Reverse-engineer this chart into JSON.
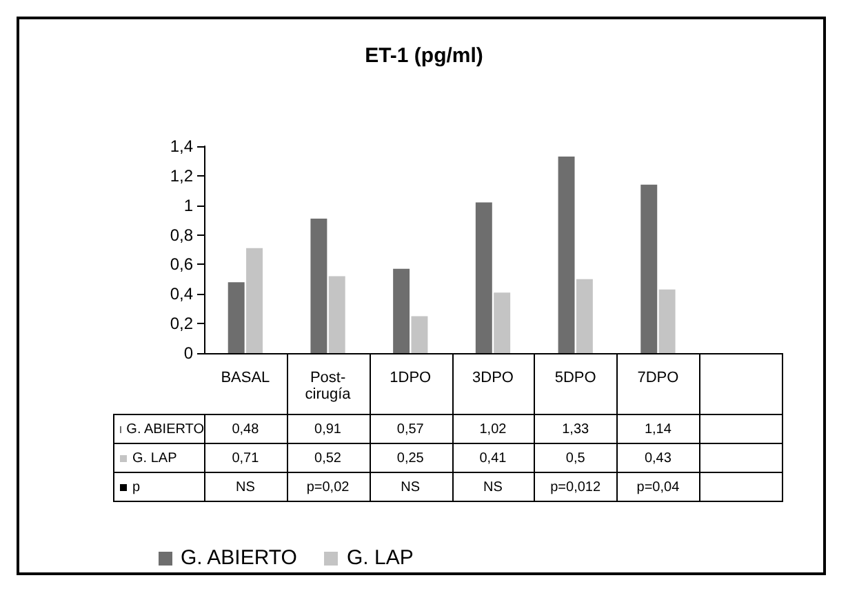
{
  "chart_data": {
    "type": "bar",
    "title": "ET-1 (pg/ml)",
    "categories": [
      "BASAL",
      "Post-cirugía",
      "1DPO",
      "3DPO",
      "5DPO",
      "7DPO",
      null
    ],
    "series": [
      {
        "name": "G. ABIERTO",
        "color": "#6e6e6e",
        "values": [
          0.48,
          0.91,
          0.57,
          1.02,
          1.33,
          1.14,
          null
        ],
        "value_labels": [
          "0,48",
          "0,91",
          "0,57",
          "1,02",
          "1,33",
          "1,14",
          null
        ]
      },
      {
        "name": "G. LAP",
        "color": "#c4c4c4",
        "values": [
          0.71,
          0.52,
          0.25,
          0.41,
          0.5,
          0.43,
          null
        ],
        "value_labels": [
          "0,71",
          "0,52",
          "0,25",
          "0,41",
          "0,5",
          "0,43",
          null
        ]
      }
    ],
    "annotations": [
      "p",
      "NS",
      "p=0,02",
      "NS",
      "NS",
      "p=0,012",
      "p=0,04"
    ],
    "ylim": [
      0,
      1.4
    ],
    "yticks": [
      0,
      {
        "value": 0.2,
        "label": "0,2"
      },
      {
        "value": 0.4,
        "label": "0,4"
      },
      {
        "value": 0.6,
        "label": "0,6"
      },
      {
        "value": 0.8,
        "label": "0,8"
      },
      1,
      {
        "value": 1.2,
        "label": "1,2"
      },
      {
        "value": 1.4,
        "label": "1,4"
      }
    ],
    "grid": false,
    "legend": "bottom"
  }
}
